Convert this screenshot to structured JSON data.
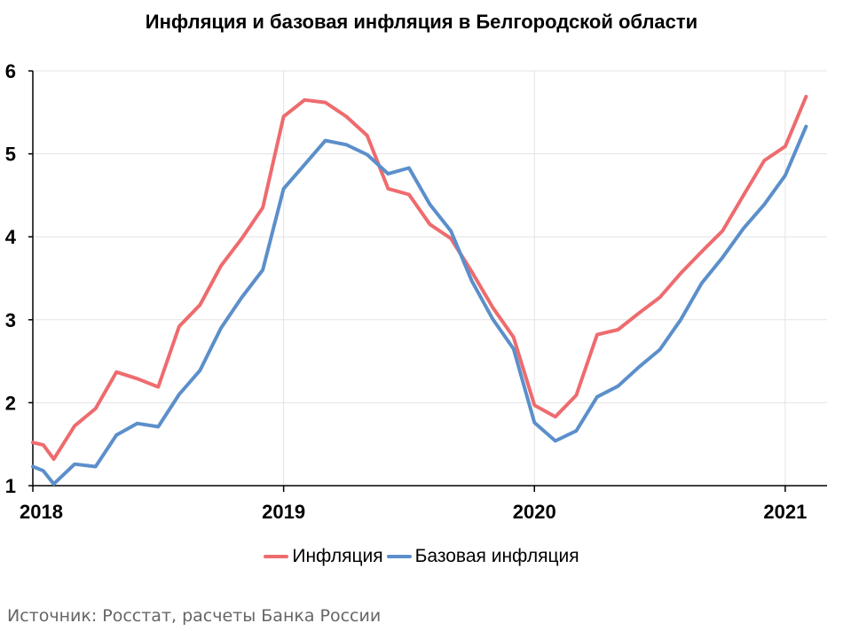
{
  "chart_data": {
    "type": "line",
    "title": "Инфляция и базовая инфляция в Белгородской области",
    "xlabel": "",
    "ylabel": "",
    "x_ticks": [
      "2018",
      "2019",
      "2020",
      "2021"
    ],
    "y_ticks": [
      "1",
      "2",
      "3",
      "4",
      "5",
      "6"
    ],
    "ylim": [
      1,
      6
    ],
    "x_start": "2018-01",
    "x_end": "2021-03",
    "x_tick_dates": [
      "2018-01",
      "2019-01",
      "2020-01",
      "2021-01"
    ],
    "grid": true,
    "legend_position": "bottom",
    "series": [
      {
        "name": "Инфляция",
        "color": "#ee6b6e",
        "points": [
          [
            "2018-01",
            1.52
          ],
          [
            "2018-01-16",
            1.49
          ],
          [
            "2018-02",
            1.32
          ],
          [
            "2018-03",
            1.72
          ],
          [
            "2018-04",
            1.93
          ],
          [
            "2018-05",
            2.37
          ],
          [
            "2018-06",
            2.29
          ],
          [
            "2018-07",
            2.19
          ],
          [
            "2018-08",
            2.92
          ],
          [
            "2018-09",
            3.18
          ],
          [
            "2018-10",
            3.65
          ],
          [
            "2018-11",
            3.98
          ],
          [
            "2018-12",
            4.35
          ],
          [
            "2019-01",
            5.45
          ],
          [
            "2019-02",
            5.65
          ],
          [
            "2019-03",
            5.62
          ],
          [
            "2019-04",
            5.45
          ],
          [
            "2019-05",
            5.22
          ],
          [
            "2019-06",
            4.58
          ],
          [
            "2019-07",
            4.51
          ],
          [
            "2019-08",
            4.15
          ],
          [
            "2019-09",
            3.98
          ],
          [
            "2019-10",
            3.58
          ],
          [
            "2019-11",
            3.15
          ],
          [
            "2019-12",
            2.79
          ],
          [
            "2020-01",
            1.97
          ],
          [
            "2020-02",
            1.83
          ],
          [
            "2020-03",
            2.09
          ],
          [
            "2020-04",
            2.82
          ],
          [
            "2020-05",
            2.88
          ],
          [
            "2020-06",
            3.08
          ],
          [
            "2020-07",
            3.27
          ],
          [
            "2020-08",
            3.56
          ],
          [
            "2020-09",
            3.82
          ],
          [
            "2020-10",
            4.07
          ],
          [
            "2020-11",
            4.5
          ],
          [
            "2020-12",
            4.92
          ],
          [
            "2021-01",
            5.09
          ],
          [
            "2021-02",
            5.69
          ]
        ]
      },
      {
        "name": "Базовая инфляция",
        "color": "#5b8fca",
        "points": [
          [
            "2018-01",
            1.23
          ],
          [
            "2018-01-16",
            1.18
          ],
          [
            "2018-02",
            1.02
          ],
          [
            "2018-03",
            1.26
          ],
          [
            "2018-04",
            1.23
          ],
          [
            "2018-05",
            1.61
          ],
          [
            "2018-06",
            1.75
          ],
          [
            "2018-07",
            1.71
          ],
          [
            "2018-08",
            2.1
          ],
          [
            "2018-09",
            2.39
          ],
          [
            "2018-10",
            2.9
          ],
          [
            "2018-11",
            3.27
          ],
          [
            "2018-12",
            3.6
          ],
          [
            "2019-01",
            4.58
          ],
          [
            "2019-02",
            4.87
          ],
          [
            "2019-03",
            5.16
          ],
          [
            "2019-04",
            5.11
          ],
          [
            "2019-05",
            4.99
          ],
          [
            "2019-06",
            4.76
          ],
          [
            "2019-07",
            4.83
          ],
          [
            "2019-08",
            4.39
          ],
          [
            "2019-09",
            4.07
          ],
          [
            "2019-10",
            3.47
          ],
          [
            "2019-11",
            3.01
          ],
          [
            "2019-12",
            2.65
          ],
          [
            "2020-01",
            1.76
          ],
          [
            "2020-02",
            1.54
          ],
          [
            "2020-03",
            1.66
          ],
          [
            "2020-04",
            2.07
          ],
          [
            "2020-05",
            2.2
          ],
          [
            "2020-06",
            2.43
          ],
          [
            "2020-07",
            2.64
          ],
          [
            "2020-08",
            3.0
          ],
          [
            "2020-09",
            3.44
          ],
          [
            "2020-10",
            3.75
          ],
          [
            "2020-11",
            4.1
          ],
          [
            "2020-12",
            4.39
          ],
          [
            "2021-01",
            4.74
          ],
          [
            "2021-02",
            5.33
          ]
        ]
      }
    ]
  },
  "source_note": "Источник: Росстат, расчеты Банка России"
}
